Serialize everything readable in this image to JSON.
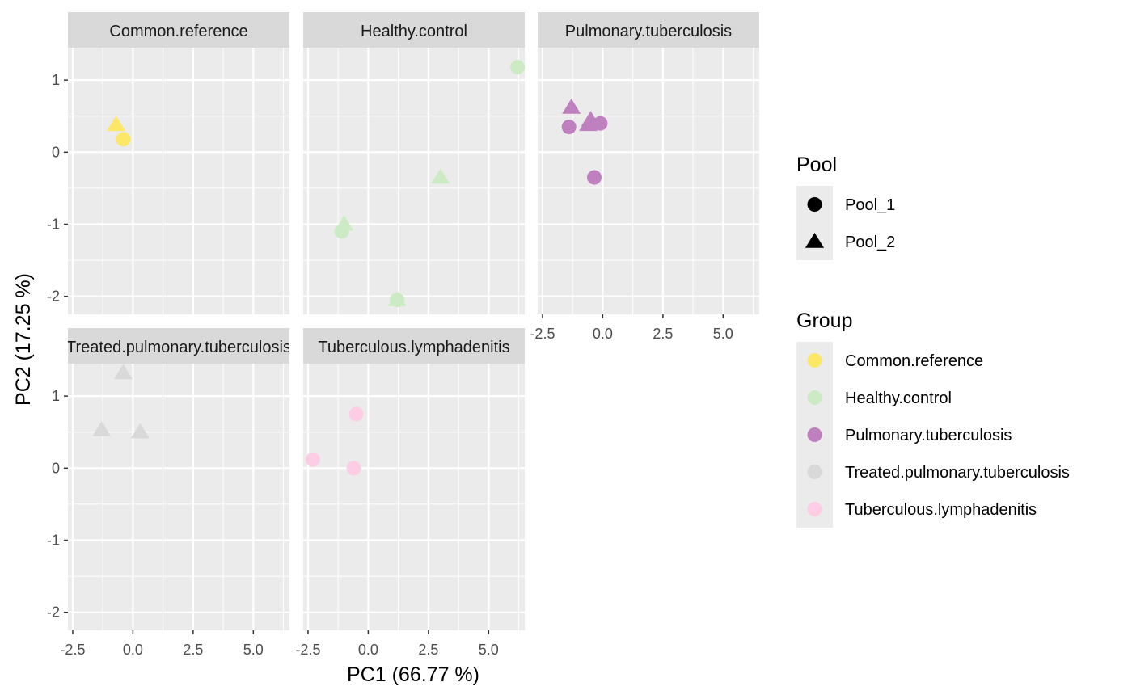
{
  "chart_data": {
    "type": "scatter",
    "xlabel": "PC1 (66.77 %)",
    "ylabel": "PC2 (17.25 %)",
    "xlim": [
      -2.7,
      6.5
    ],
    "ylim": [
      -2.25,
      1.45
    ],
    "x_ticks": [
      -2.5,
      0,
      2.5,
      5
    ],
    "x_tick_labels": [
      "-2.5",
      "0.0",
      "2.5",
      "5.0"
    ],
    "y_ticks": [
      -2,
      -1,
      0,
      1
    ],
    "y_tick_labels": [
      "-2",
      "-1",
      "0",
      "1"
    ],
    "grid": true,
    "legend_position": "right",
    "pool_legend": {
      "title": "Pool",
      "items": [
        {
          "label": "Pool_1",
          "shape": "circle"
        },
        {
          "label": "Pool_2",
          "shape": "triangle"
        }
      ]
    },
    "group_legend": {
      "title": "Group",
      "items": [
        {
          "label": "Common.reference",
          "color": "#FDE767"
        },
        {
          "label": "Healthy.control",
          "color": "#CCEBC5"
        },
        {
          "label": "Pulmonary.tuberculosis",
          "color": "#BF80BF"
        },
        {
          "label": "Treated.pulmonary.tuberculosis",
          "color": "#D9D9D9"
        },
        {
          "label": "Tuberculous.lymphadenitis",
          "color": "#FCCDE5"
        }
      ]
    },
    "panels": [
      {
        "title": "Common.reference",
        "color": "#FDE767",
        "points": [
          {
            "x": -0.7,
            "y": 0.38,
            "pool": "Pool_2"
          },
          {
            "x": -0.4,
            "y": 0.18,
            "pool": "Pool_1"
          }
        ]
      },
      {
        "title": "Healthy.control",
        "color": "#CCEBC5",
        "points": [
          {
            "x": 6.2,
            "y": 1.18,
            "pool": "Pool_1"
          },
          {
            "x": 3.0,
            "y": -0.35,
            "pool": "Pool_2"
          },
          {
            "x": -1.0,
            "y": -1.0,
            "pool": "Pool_2"
          },
          {
            "x": -1.1,
            "y": -1.1,
            "pool": "Pool_1"
          },
          {
            "x": 1.2,
            "y": -2.05,
            "pool": "Pool_1"
          },
          {
            "x": 1.2,
            "y": -2.05,
            "pool": "Pool_2"
          }
        ]
      },
      {
        "title": "Pulmonary.tuberculosis",
        "color": "#BF80BF",
        "points": [
          {
            "x": -1.3,
            "y": 0.62,
            "pool": "Pool_2"
          },
          {
            "x": -0.5,
            "y": 0.45,
            "pool": "Pool_2"
          },
          {
            "x": -0.6,
            "y": 0.38,
            "pool": "Pool_2"
          },
          {
            "x": -1.4,
            "y": 0.35,
            "pool": "Pool_1"
          },
          {
            "x": -0.1,
            "y": 0.4,
            "pool": "Pool_1"
          },
          {
            "x": -0.35,
            "y": -0.35,
            "pool": "Pool_1"
          }
        ]
      },
      {
        "title": "Treated.pulmonary.tuberculosis",
        "color": "#D9D9D9",
        "points": [
          {
            "x": -0.4,
            "y": 1.32,
            "pool": "Pool_2"
          },
          {
            "x": -1.3,
            "y": 0.53,
            "pool": "Pool_2"
          },
          {
            "x": 0.3,
            "y": 0.5,
            "pool": "Pool_2"
          }
        ]
      },
      {
        "title": "Tuberculous.lymphadenitis",
        "color": "#FCCDE5",
        "points": [
          {
            "x": -0.5,
            "y": 0.75,
            "pool": "Pool_1"
          },
          {
            "x": -2.3,
            "y": 0.12,
            "pool": "Pool_1"
          },
          {
            "x": -0.6,
            "y": 0.0,
            "pool": "Pool_1"
          }
        ]
      }
    ]
  }
}
